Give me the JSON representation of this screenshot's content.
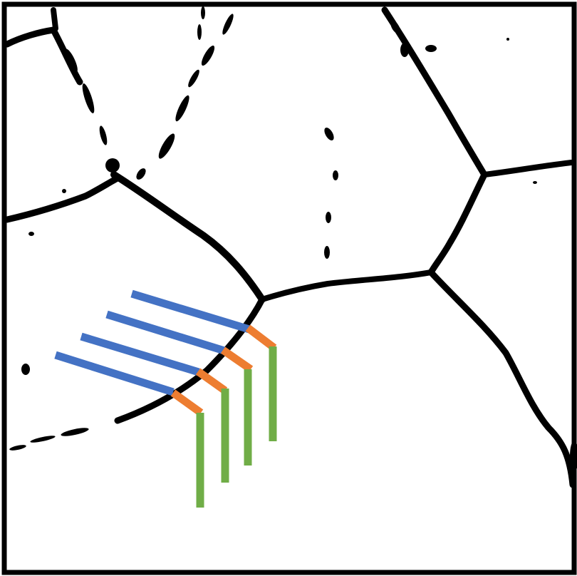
{
  "colors": {
    "background": "#ffffff",
    "boundary": "#000000",
    "segment_a": "#4472c4",
    "segment_b": "#ed7d31",
    "segment_c": "#70ad47"
  },
  "segment_groups": [
    {
      "name": "blue-segments",
      "color_key": "segment_a",
      "count": 4
    },
    {
      "name": "orange-segments",
      "color_key": "segment_b",
      "count": 4
    },
    {
      "name": "green-segments",
      "color_key": "segment_c",
      "count": 4
    }
  ]
}
